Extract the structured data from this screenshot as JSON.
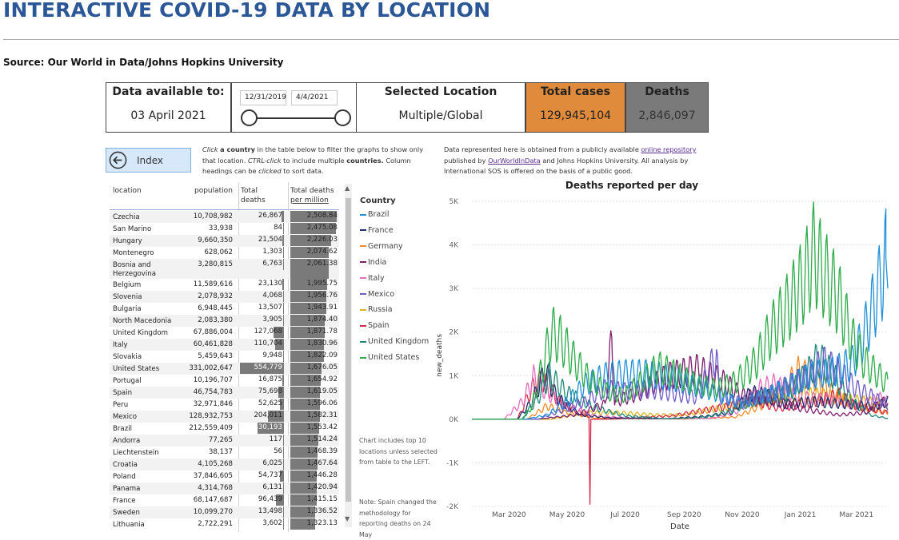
{
  "page": {
    "title": "INTERACTIVE COVID-19 DATA BY LOCATION",
    "source": "Source: Our World in Data/Johns Hopkins University"
  },
  "cards": {
    "data_available_label": "Data available to:",
    "data_available_value": "03 April 2021",
    "date_start": "12/31/2019",
    "date_end": "4/4/2021",
    "selected_location_label": "Selected Location",
    "selected_location_value": "Multiple/Global",
    "total_cases_label": "Total cases",
    "total_cases_value": "129,945,104",
    "deaths_label": "Deaths",
    "deaths_value": "2,846,097",
    "total_cases_color": "#e08a3c",
    "deaths_color": "#7a7a7a"
  },
  "index_button": {
    "label": "Index"
  },
  "instructions": {
    "click": "Click",
    "a_country": "a country",
    "t1": "in the table below to filter the graphs to show only that location.",
    "ctrl": "CTRL-click",
    "t2": "to include multiple",
    "countries": "countries.",
    "t3": "Column headings can be",
    "clicked": "clicked",
    "t4": "to sort data."
  },
  "source_note": {
    "t1": "Data represented here is obtained from a publicly available",
    "link1": "online repository",
    "t2": "published by",
    "link2": "OurWorldInData",
    "t3": "and Johns Hopkins University.  All analysis by International SOS is offered on the basis of a public good."
  },
  "table": {
    "headers": {
      "location": "location",
      "population": "population",
      "total_deaths_1": "Total",
      "total_deaths_2": "deaths",
      "dpm_1": "Total deaths",
      "dpm_2": "per million"
    },
    "rows": [
      {
        "loc": "Czechia",
        "pop": "10,708,982",
        "deaths": "26,867",
        "dpm": "2,508.84",
        "d": 26867,
        "m": 2508.84
      },
      {
        "loc": "San Marino",
        "pop": "33,938",
        "deaths": "84",
        "dpm": "2,475.08",
        "d": 84,
        "m": 2475.08
      },
      {
        "loc": "Hungary",
        "pop": "9,660,350",
        "deaths": "21,504",
        "dpm": "2,226.03",
        "d": 21504,
        "m": 2226.03
      },
      {
        "loc": "Montenegro",
        "pop": "628,062",
        "deaths": "1,303",
        "dpm": "2,074.62",
        "d": 1303,
        "m": 2074.62
      },
      {
        "loc": "Bosnia and",
        "loc2": "Herzegovina",
        "pop": "3,280,815",
        "deaths": "6,763",
        "dpm": "2,061.38",
        "d": 6763,
        "m": 2061.38
      },
      {
        "loc": "Belgium",
        "pop": "11,589,616",
        "deaths": "23,130",
        "dpm": "1,995.75",
        "d": 23130,
        "m": 1995.75
      },
      {
        "loc": "Slovenia",
        "pop": "2,078,932",
        "deaths": "4,068",
        "dpm": "1,956.76",
        "d": 4068,
        "m": 1956.76
      },
      {
        "loc": "Bulgaria",
        "pop": "6,948,445",
        "deaths": "13,507",
        "dpm": "1,943.91",
        "d": 13507,
        "m": 1943.91
      },
      {
        "loc": "North Macedonia",
        "pop": "2,083,380",
        "deaths": "3,905",
        "dpm": "1,874.40",
        "d": 3905,
        "m": 1874.4
      },
      {
        "loc": "United Kingdom",
        "pop": "67,886,004",
        "deaths": "127,068",
        "dpm": "1,871.78",
        "d": 127068,
        "m": 1871.78
      },
      {
        "loc": "Italy",
        "pop": "60,461,828",
        "deaths": "110,704",
        "dpm": "1,830.96",
        "d": 110704,
        "m": 1830.96
      },
      {
        "loc": "Slovakia",
        "pop": "5,459,643",
        "deaths": "9,948",
        "dpm": "1,822.09",
        "d": 9948,
        "m": 1822.09
      },
      {
        "loc": "United States",
        "pop": "331,002,647",
        "deaths": "554,779",
        "dpm": "1,676.05",
        "d": 554779,
        "m": 1676.05
      },
      {
        "loc": "Portugal",
        "pop": "10,196,707",
        "deaths": "16,875",
        "dpm": "1,654.92",
        "d": 16875,
        "m": 1654.92
      },
      {
        "loc": "Spain",
        "pop": "46,754,783",
        "deaths": "75,698",
        "dpm": "1,619.05",
        "d": 75698,
        "m": 1619.05
      },
      {
        "loc": "Peru",
        "pop": "32,971,846",
        "deaths": "52,625",
        "dpm": "1,596.06",
        "d": 52625,
        "m": 1596.06
      },
      {
        "loc": "Mexico",
        "pop": "128,932,753",
        "deaths": "204,011",
        "dpm": "1,582.31",
        "d": 204011,
        "m": 1582.31
      },
      {
        "loc": "Brazil",
        "pop": "212,559,409",
        "deaths": "330,193",
        "dpm": "1,553.42",
        "d": 330193,
        "m": 1553.42
      },
      {
        "loc": "Andorra",
        "pop": "77,265",
        "deaths": "117",
        "dpm": "1,514.24",
        "d": 117,
        "m": 1514.24
      },
      {
        "loc": "Liechtenstein",
        "pop": "38,137",
        "deaths": "56",
        "dpm": "1,468.39",
        "d": 56,
        "m": 1468.39
      },
      {
        "loc": "Croatia",
        "pop": "4,105,268",
        "deaths": "6,025",
        "dpm": "1,467.64",
        "d": 6025,
        "m": 1467.64
      },
      {
        "loc": "Poland",
        "pop": "37,846,605",
        "deaths": "54,737",
        "dpm": "1,446.28",
        "d": 54737,
        "m": 1446.28
      },
      {
        "loc": "Panama",
        "pop": "4,314,768",
        "deaths": "6,131",
        "dpm": "1,420.94",
        "d": 6131,
        "m": 1420.94
      },
      {
        "loc": "France",
        "pop": "68,147,687",
        "deaths": "96,439",
        "dpm": "1,415.15",
        "d": 96439,
        "m": 1415.15
      },
      {
        "loc": "Sweden",
        "pop": "10,099,270",
        "deaths": "13,498",
        "dpm": "1,336.52",
        "d": 13498,
        "m": 1336.52
      },
      {
        "loc": "Lithuania",
        "pop": "2,722,291",
        "deaths": "3,602",
        "dpm": "1,323.13",
        "d": 3602,
        "m": 1323.13
      }
    ]
  },
  "legend": {
    "title": "Country",
    "items": [
      {
        "name": "Brazil",
        "color": "#1f8fd6"
      },
      {
        "name": "France",
        "color": "#1f2f6b"
      },
      {
        "name": "Germany",
        "color": "#f08a24"
      },
      {
        "name": "India",
        "color": "#7b1f6e"
      },
      {
        "name": "Italy",
        "color": "#e36fbd"
      },
      {
        "name": "Mexico",
        "color": "#6e5bc6"
      },
      {
        "name": "Russia",
        "color": "#d9b51c"
      },
      {
        "name": "Spain",
        "color": "#d62a4a"
      },
      {
        "name": "United Kingdom",
        "color": "#1f8a7a"
      },
      {
        "name": "United States",
        "color": "#2eab4a"
      }
    ]
  },
  "side_notes": {
    "top10": "Chart includes top 10 locations unless selected from table to the LEFT.",
    "spain": "Note: Spain changed the methodology for reporting deaths on 24 May"
  },
  "chart_data": {
    "type": "line",
    "title": "Deaths reported per day",
    "xlabel": "Date",
    "ylabel": "new_deaths",
    "y_ticks": [
      "5K",
      "4K",
      "3K",
      "2K",
      "1K",
      "0K",
      "-1K",
      "-2K"
    ],
    "x_ticks": [
      "Mar 2020",
      "May 2020",
      "Jul 2020",
      "Sep 2020",
      "Nov 2020",
      "Jan 2021",
      "Mar 2021"
    ],
    "ylim": [
      -2000,
      5000
    ],
    "x_range": [
      "2020-01-22",
      "2021-04-03"
    ],
    "grid": true,
    "series": [
      {
        "name": "United States",
        "points": [
          [
            "2020-03-15",
            5
          ],
          [
            "2020-03-25",
            300
          ],
          [
            "2020-04-05",
            1200
          ],
          [
            "2020-04-15",
            2000
          ],
          [
            "2020-04-25",
            1800
          ],
          [
            "2020-05-10",
            1300
          ],
          [
            "2020-05-25",
            900
          ],
          [
            "2020-06-15",
            600
          ],
          [
            "2020-07-01",
            550
          ],
          [
            "2020-07-20",
            900
          ],
          [
            "2020-08-05",
            1200
          ],
          [
            "2020-08-25",
            1000
          ],
          [
            "2020-09-15",
            800
          ],
          [
            "2020-10-05",
            700
          ],
          [
            "2020-10-25",
            850
          ],
          [
            "2020-11-15",
            1300
          ],
          [
            "2020-12-01",
            2000
          ],
          [
            "2020-12-20",
            2600
          ],
          [
            "2021-01-05",
            3200
          ],
          [
            "2021-01-15",
            3800
          ],
          [
            "2021-01-27",
            3300
          ],
          [
            "2021-02-10",
            2800
          ],
          [
            "2021-02-25",
            1800
          ],
          [
            "2021-03-10",
            1300
          ],
          [
            "2021-03-25",
            1000
          ],
          [
            "2021-04-03",
            800
          ]
        ]
      },
      {
        "name": "Brazil",
        "points": [
          [
            "2020-03-20",
            5
          ],
          [
            "2020-04-10",
            100
          ],
          [
            "2020-05-01",
            400
          ],
          [
            "2020-05-20",
            800
          ],
          [
            "2020-06-10",
            1000
          ],
          [
            "2020-07-01",
            1050
          ],
          [
            "2020-07-25",
            1050
          ],
          [
            "2020-08-20",
            950
          ],
          [
            "2020-09-15",
            750
          ],
          [
            "2020-10-10",
            550
          ],
          [
            "2020-11-01",
            350
          ],
          [
            "2020-11-20",
            500
          ],
          [
            "2020-12-15",
            700
          ],
          [
            "2021-01-10",
            1000
          ],
          [
            "2021-02-05",
            1100
          ],
          [
            "2021-02-25",
            1300
          ],
          [
            "2021-03-10",
            2000
          ],
          [
            "2021-03-20",
            2700
          ],
          [
            "2021-03-27",
            3200
          ],
          [
            "2021-04-01",
            3700
          ],
          [
            "2021-04-03",
            3000
          ]
        ]
      },
      {
        "name": "Mexico",
        "points": [
          [
            "2020-04-01",
            5
          ],
          [
            "2020-04-25",
            200
          ],
          [
            "2020-05-20",
            400
          ],
          [
            "2020-06-10",
            700
          ],
          [
            "2020-07-01",
            650
          ],
          [
            "2020-07-25",
            700
          ],
          [
            "2020-08-20",
            600
          ],
          [
            "2020-09-15",
            500
          ],
          [
            "2020-10-05",
            1500
          ],
          [
            "2020-10-08",
            500
          ],
          [
            "2020-10-30",
            400
          ],
          [
            "2020-12-01",
            600
          ],
          [
            "2021-01-10",
            1000
          ],
          [
            "2021-01-25",
            1300
          ],
          [
            "2021-02-10",
            1100
          ],
          [
            "2021-03-01",
            700
          ],
          [
            "2021-03-20",
            500
          ],
          [
            "2021-04-03",
            300
          ]
        ]
      },
      {
        "name": "India",
        "points": [
          [
            "2020-04-01",
            5
          ],
          [
            "2020-05-10",
            100
          ],
          [
            "2020-06-10",
            350
          ],
          [
            "2020-06-17",
            1800
          ],
          [
            "2020-06-20",
            400
          ],
          [
            "2020-07-15",
            600
          ],
          [
            "2020-08-15",
            1000
          ],
          [
            "2020-09-15",
            1150
          ],
          [
            "2020-10-10",
            900
          ],
          [
            "2020-11-01",
            550
          ],
          [
            "2020-12-01",
            450
          ],
          [
            "2021-01-01",
            250
          ],
          [
            "2021-02-10",
            100
          ],
          [
            "2021-03-10",
            150
          ],
          [
            "2021-04-03",
            450
          ]
        ]
      },
      {
        "name": "United Kingdom",
        "points": [
          [
            "2020-03-15",
            10
          ],
          [
            "2020-04-01",
            500
          ],
          [
            "2020-04-12",
            1000
          ],
          [
            "2020-05-01",
            600
          ],
          [
            "2020-06-01",
            250
          ],
          [
            "2020-07-01",
            80
          ],
          [
            "2020-08-15",
            10
          ],
          [
            "2020-09-25",
            50
          ],
          [
            "2020-10-20",
            200
          ],
          [
            "2020-11-20",
            500
          ],
          [
            "2020-12-20",
            600
          ],
          [
            "2021-01-10",
            1100
          ],
          [
            "2021-01-20",
            1400
          ],
          [
            "2021-02-05",
            1000
          ],
          [
            "2021-02-25",
            400
          ],
          [
            "2021-03-15",
            100
          ],
          [
            "2021-04-03",
            20
          ]
        ]
      },
      {
        "name": "France",
        "points": [
          [
            "2020-03-10",
            10
          ],
          [
            "2020-03-25",
            400
          ],
          [
            "2020-04-08",
            1100
          ],
          [
            "2020-04-20",
            500
          ],
          [
            "2020-05-15",
            100
          ],
          [
            "2020-06-15",
            30
          ],
          [
            "2020-08-15",
            15
          ],
          [
            "2020-09-25",
            70
          ],
          [
            "2020-10-20",
            150
          ],
          [
            "2020-11-10",
            600
          ],
          [
            "2020-11-25",
            550
          ],
          [
            "2020-12-15",
            350
          ],
          [
            "2021-01-15",
            400
          ],
          [
            "2021-02-15",
            350
          ],
          [
            "2021-03-20",
            300
          ],
          [
            "2021-04-03",
            400
          ]
        ]
      },
      {
        "name": "Italy",
        "points": [
          [
            "2020-02-25",
            5
          ],
          [
            "2020-03-15",
            400
          ],
          [
            "2020-03-27",
            950
          ],
          [
            "2020-04-10",
            600
          ],
          [
            "2020-05-01",
            300
          ],
          [
            "2020-06-01",
            70
          ],
          [
            "2020-08-01",
            10
          ],
          [
            "2020-09-30",
            20
          ],
          [
            "2020-10-25",
            150
          ],
          [
            "2020-11-20",
            700
          ],
          [
            "2020-12-05",
            800
          ],
          [
            "2021-01-01",
            500
          ],
          [
            "2021-02-01",
            450
          ],
          [
            "2021-03-01",
            300
          ],
          [
            "2021-03-25",
            480
          ],
          [
            "2021-04-03",
            400
          ]
        ]
      },
      {
        "name": "Spain",
        "points": [
          [
            "2020-03-10",
            10
          ],
          [
            "2020-03-25",
            700
          ],
          [
            "2020-04-05",
            900
          ],
          [
            "2020-04-25",
            350
          ],
          [
            "2020-05-24",
            50
          ],
          [
            "2020-05-25",
            -1950
          ],
          [
            "2020-05-26",
            0
          ],
          [
            "2020-06-20",
            5
          ],
          [
            "2020-08-20",
            80
          ],
          [
            "2020-09-20",
            200
          ],
          [
            "2020-10-20",
            300
          ],
          [
            "2020-11-10",
            450
          ],
          [
            "2020-12-10",
            250
          ],
          [
            "2021-01-25",
            450
          ],
          [
            "2021-02-10",
            550
          ],
          [
            "2021-03-01",
            300
          ],
          [
            "2021-04-03",
            150
          ]
        ]
      },
      {
        "name": "Germany",
        "points": [
          [
            "2020-03-20",
            5
          ],
          [
            "2020-04-10",
            300
          ],
          [
            "2020-05-01",
            150
          ],
          [
            "2020-06-01",
            20
          ],
          [
            "2020-09-01",
            5
          ],
          [
            "2020-10-25",
            50
          ],
          [
            "2020-11-25",
            350
          ],
          [
            "2020-12-15",
            700
          ],
          [
            "2020-12-30",
            1100
          ],
          [
            "2021-01-15",
            950
          ],
          [
            "2021-02-05",
            600
          ],
          [
            "2021-03-01",
            300
          ],
          [
            "2021-04-03",
            150
          ]
        ]
      },
      {
        "name": "Russia",
        "points": [
          [
            "2020-04-15",
            10
          ],
          [
            "2020-05-25",
            150
          ],
          [
            "2020-06-25",
            150
          ],
          [
            "2020-08-01",
            100
          ],
          [
            "2020-09-01",
            100
          ],
          [
            "2020-10-20",
            300
          ],
          [
            "2020-11-20",
            450
          ],
          [
            "2020-12-20",
            580
          ],
          [
            "2021-01-20",
            550
          ],
          [
            "2021-02-20",
            450
          ],
          [
            "2021-04-03",
            350
          ]
        ]
      }
    ]
  }
}
